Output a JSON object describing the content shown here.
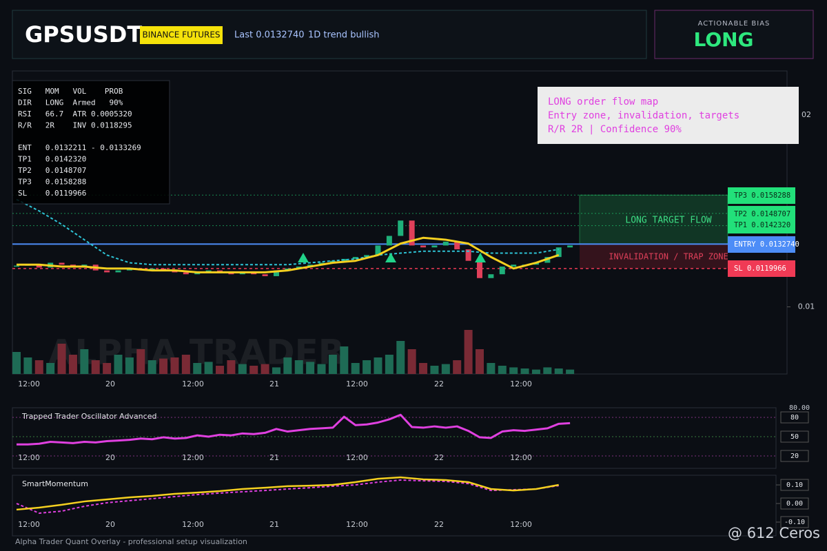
{
  "header": {
    "symbol": "GPSUSDT",
    "exchange": "BINANCE FUTURES",
    "last": "Last 0.0132740",
    "trend": "1D trend bullish"
  },
  "bias": {
    "label": "ACTIONABLE BIAS",
    "value": "LONG"
  },
  "info_panel": {
    "stats": [
      "SIG   MOM   VOL    PROB",
      "DIR   LONG  Armed   90%",
      "RSI   66.7  ATR 0.0005320",
      "R/R   2R    INV 0.0118295"
    ],
    "plan": [
      "ENT   0.0132211 - 0.0133269",
      "TP1   0.0142320",
      "TP2   0.0148707",
      "TP3   0.0158288",
      "SL    0.0119966"
    ]
  },
  "note": {
    "lines": [
      "LONG order flow map",
      "Entry zone, invalidation, targets",
      "R/R 2R | Confidence 90%"
    ]
  },
  "levels": [
    {
      "label": "TP3 0.0158288",
      "value": 0.0158288,
      "color": "#22e07a"
    },
    {
      "label": "TP2 0.0148707",
      "value": 0.0148707,
      "color": "#22e07a"
    },
    {
      "label": "TP1 0.0142320",
      "value": 0.014232,
      "color": "#22e07a"
    },
    {
      "label": "ENTRY 0.0132740",
      "value": 0.013274,
      "color": "#4d8df7"
    },
    {
      "label": "SL 0.0119966",
      "value": 0.0119966,
      "color": "#f03a55"
    }
  ],
  "zones": {
    "target": "LONG TARGET FLOW",
    "invalidation": "INVALIDATION / TRAP ZONE"
  },
  "watermark": "ALPHA TRADER",
  "footer": {
    "caption": "Alpha Trader Quant Overlay - professional setup visualization",
    "credit": "@ 612 Ceros"
  },
  "chart_data": [
    {
      "type": "candlestick",
      "ylim": [
        0.0065,
        0.0223
      ],
      "yticks": [
        {
          "value": 0.02,
          "label": "02"
        },
        0.01
      ],
      "x_labels": [
        "12:00",
        "20",
        "12:00",
        "21",
        "12:00",
        "22",
        "12:00"
      ],
      "up_color": "#1fb07a",
      "down_color": "#e0405a",
      "close": [
        0.01215,
        0.0122,
        0.01205,
        0.0123,
        0.0122,
        0.0121,
        0.0122,
        0.0119,
        0.0118,
        0.0119,
        0.012,
        0.0119,
        0.012,
        0.0119,
        0.0118,
        0.0117,
        0.0118,
        0.0119,
        0.0118,
        0.0117,
        0.0118,
        0.0117,
        0.0116,
        0.0119,
        0.012,
        0.0121,
        0.0122,
        0.0123,
        0.0124,
        0.0125,
        0.0126,
        0.0127,
        0.0132,
        0.0137,
        0.0145,
        0.0132,
        0.0131,
        0.0132,
        0.0134,
        0.013,
        0.0124,
        0.0115,
        0.0117,
        0.0121,
        0.0122,
        0.0122,
        0.0123,
        0.0126,
        0.0131,
        0.0132
      ],
      "volume": [
        40,
        30,
        25,
        20,
        55,
        35,
        45,
        25,
        20,
        35,
        30,
        45,
        25,
        28,
        30,
        35,
        20,
        22,
        15,
        25,
        18,
        15,
        18,
        12,
        30,
        25,
        22,
        18,
        35,
        50,
        20,
        25,
        30,
        35,
        60,
        45,
        20,
        15,
        18,
        25,
        80,
        45,
        20,
        15,
        12,
        10,
        8,
        12,
        10,
        8
      ],
      "volume_lim": [
        0,
        100
      ],
      "ema": {
        "color": "#f5d020",
        "values": [
          0.0122,
          0.0122,
          0.0121,
          0.0121,
          0.012,
          0.012,
          0.0119,
          0.0119,
          0.0118,
          0.0118,
          0.0118,
          0.0118,
          0.0119,
          0.0121,
          0.0123,
          0.0124,
          0.0127,
          0.0133,
          0.0136,
          0.0135,
          0.0133,
          0.0126,
          0.012,
          0.0123,
          0.0127
        ]
      },
      "avg": {
        "color": "#2ec4d6",
        "values": [
          0.0156,
          0.015,
          0.0143,
          0.0135,
          0.0127,
          0.0123,
          0.0122,
          0.0122,
          0.0122,
          0.0122,
          0.0122,
          0.0122,
          0.0122,
          0.0123,
          0.0124,
          0.0125,
          0.0127,
          0.0128,
          0.0129,
          0.0129,
          0.0129,
          0.0128,
          0.0128,
          0.0128,
          0.013
        ]
      }
    },
    {
      "type": "line",
      "title": "Trapped Trader Oscillator Advanced",
      "ylim": [
        0.7,
        95
      ],
      "top_label": "80.00",
      "yticks": [
        80,
        50,
        20
      ],
      "color": "#e040e0",
      "values": [
        38,
        38,
        39,
        42,
        41,
        40,
        42,
        41,
        43,
        44,
        45,
        47,
        46,
        49,
        47,
        48,
        52,
        50,
        53,
        52,
        55,
        54,
        56,
        62,
        58,
        60,
        62,
        63,
        64,
        81,
        68,
        69,
        72,
        77,
        84,
        65,
        64,
        66,
        64,
        66,
        59,
        49,
        48,
        58,
        60,
        59,
        61,
        63,
        70,
        71
      ]
    },
    {
      "type": "line",
      "title": "SmartMomentum",
      "ylim": [
        -0.174,
        0.152
      ],
      "yticks": [
        {
          "value": 0.1,
          "label": "0.10"
        },
        {
          "value": 0,
          "label": "0.00"
        },
        {
          "value": -0.1,
          "label": "-0.10"
        }
      ],
      "momentum": {
        "color": "#f5d020",
        "values": [
          -0.033,
          -0.022,
          -0.007,
          0.011,
          0.022,
          0.033,
          0.041,
          0.052,
          0.059,
          0.067,
          0.078,
          0.085,
          0.093,
          0.096,
          0.1,
          0.115,
          0.133,
          0.141,
          0.13,
          0.126,
          0.115,
          0.078,
          0.07,
          0.078,
          0.1
        ]
      },
      "signal": {
        "color": "#e040e0",
        "values": [
          0,
          -0.052,
          -0.041,
          -0.015,
          0.004,
          0.015,
          0.026,
          0.037,
          0.048,
          0.056,
          0.063,
          0.07,
          0.078,
          0.085,
          0.093,
          0.1,
          0.115,
          0.126,
          0.122,
          0.119,
          0.107,
          0.07,
          0.074,
          0.078,
          0.096
        ]
      }
    }
  ]
}
